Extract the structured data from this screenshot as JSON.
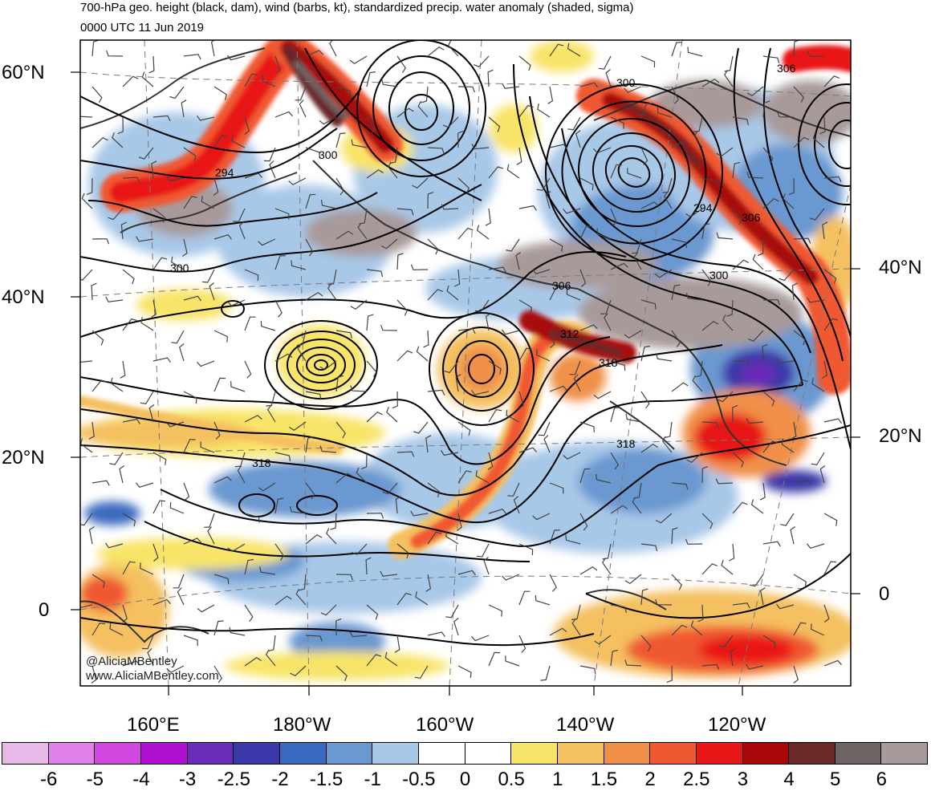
{
  "title": {
    "line1": "700-hPa geo. height (black, dam), wind (barbs, kt), standardized precip. water anomaly (shaded, sigma)",
    "line2": "0000 UTC 11 Jun 2019"
  },
  "map": {
    "lat_labels_left": [
      "60°N",
      "40°N",
      "20°N",
      "0"
    ],
    "lat_labels_right": [
      "40°N",
      "20°N",
      "0"
    ],
    "lon_labels": [
      "160°E",
      "180°W",
      "160°W",
      "140°W",
      "120°W"
    ],
    "contour_labels": [
      "294",
      "300",
      "300",
      "306",
      "312",
      "318",
      "318",
      "318",
      "300",
      "294",
      "306",
      "300",
      "306"
    ],
    "credit_line1": "@AliciaMBentley",
    "credit_line2": "www.AliciaMBentley.com"
  },
  "colorbar": {
    "colors": [
      "#e8b8e8",
      "#e080e8",
      "#d048e0",
      "#b010d0",
      "#6a2cb8",
      "#3a38a8",
      "#3a6ac0",
      "#6a98d0",
      "#a8c8e8",
      "#ffffff",
      "#ffffff",
      "#f8e468",
      "#f4c060",
      "#f09048",
      "#f05830",
      "#e81818",
      "#a80808",
      "#6a2828",
      "#6e6464",
      "#a89a9a"
    ],
    "labels": [
      "-6",
      "-5",
      "-4",
      "-3",
      "-2.5",
      "-2",
      "-1.5",
      "-1",
      "-0.5",
      "0",
      "0.5",
      "1",
      "1.5",
      "2",
      "2.5",
      "3",
      "4",
      "5",
      "6"
    ]
  }
}
